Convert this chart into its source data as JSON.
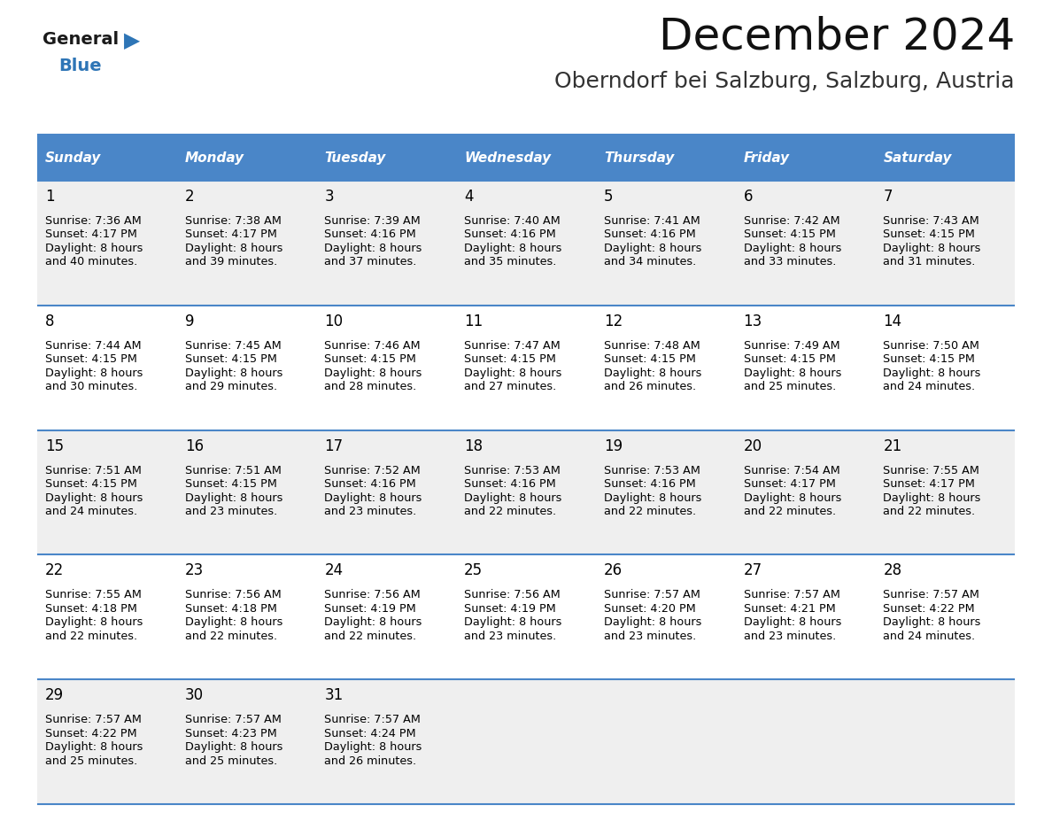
{
  "title": "December 2024",
  "subtitle": "Oberndorf bei Salzburg, Salzburg, Austria",
  "header_bg_color": "#4A86C8",
  "header_text_color": "#FFFFFF",
  "day_names": [
    "Sunday",
    "Monday",
    "Tuesday",
    "Wednesday",
    "Thursday",
    "Friday",
    "Saturday"
  ],
  "row_bg_colors": [
    "#EFEFEF",
    "#FFFFFF",
    "#EFEFEF",
    "#FFFFFF",
    "#EFEFEF"
  ],
  "cell_text_color": "#000000",
  "grid_color": "#4A86C8",
  "logo_general_color": "#1a1a1a",
  "logo_blue_color": "#2E75B6",
  "days": [
    {
      "day": 1,
      "col": 0,
      "row": 0,
      "sunrise": "7:36 AM",
      "sunset": "4:17 PM",
      "daylight_a": "8 hours",
      "daylight_b": "and 40 minutes."
    },
    {
      "day": 2,
      "col": 1,
      "row": 0,
      "sunrise": "7:38 AM",
      "sunset": "4:17 PM",
      "daylight_a": "8 hours",
      "daylight_b": "and 39 minutes."
    },
    {
      "day": 3,
      "col": 2,
      "row": 0,
      "sunrise": "7:39 AM",
      "sunset": "4:16 PM",
      "daylight_a": "8 hours",
      "daylight_b": "and 37 minutes."
    },
    {
      "day": 4,
      "col": 3,
      "row": 0,
      "sunrise": "7:40 AM",
      "sunset": "4:16 PM",
      "daylight_a": "8 hours",
      "daylight_b": "and 35 minutes."
    },
    {
      "day": 5,
      "col": 4,
      "row": 0,
      "sunrise": "7:41 AM",
      "sunset": "4:16 PM",
      "daylight_a": "8 hours",
      "daylight_b": "and 34 minutes."
    },
    {
      "day": 6,
      "col": 5,
      "row": 0,
      "sunrise": "7:42 AM",
      "sunset": "4:15 PM",
      "daylight_a": "8 hours",
      "daylight_b": "and 33 minutes."
    },
    {
      "day": 7,
      "col": 6,
      "row": 0,
      "sunrise": "7:43 AM",
      "sunset": "4:15 PM",
      "daylight_a": "8 hours",
      "daylight_b": "and 31 minutes."
    },
    {
      "day": 8,
      "col": 0,
      "row": 1,
      "sunrise": "7:44 AM",
      "sunset": "4:15 PM",
      "daylight_a": "8 hours",
      "daylight_b": "and 30 minutes."
    },
    {
      "day": 9,
      "col": 1,
      "row": 1,
      "sunrise": "7:45 AM",
      "sunset": "4:15 PM",
      "daylight_a": "8 hours",
      "daylight_b": "and 29 minutes."
    },
    {
      "day": 10,
      "col": 2,
      "row": 1,
      "sunrise": "7:46 AM",
      "sunset": "4:15 PM",
      "daylight_a": "8 hours",
      "daylight_b": "and 28 minutes."
    },
    {
      "day": 11,
      "col": 3,
      "row": 1,
      "sunrise": "7:47 AM",
      "sunset": "4:15 PM",
      "daylight_a": "8 hours",
      "daylight_b": "and 27 minutes."
    },
    {
      "day": 12,
      "col": 4,
      "row": 1,
      "sunrise": "7:48 AM",
      "sunset": "4:15 PM",
      "daylight_a": "8 hours",
      "daylight_b": "and 26 minutes."
    },
    {
      "day": 13,
      "col": 5,
      "row": 1,
      "sunrise": "7:49 AM",
      "sunset": "4:15 PM",
      "daylight_a": "8 hours",
      "daylight_b": "and 25 minutes."
    },
    {
      "day": 14,
      "col": 6,
      "row": 1,
      "sunrise": "7:50 AM",
      "sunset": "4:15 PM",
      "daylight_a": "8 hours",
      "daylight_b": "and 24 minutes."
    },
    {
      "day": 15,
      "col": 0,
      "row": 2,
      "sunrise": "7:51 AM",
      "sunset": "4:15 PM",
      "daylight_a": "8 hours",
      "daylight_b": "and 24 minutes."
    },
    {
      "day": 16,
      "col": 1,
      "row": 2,
      "sunrise": "7:51 AM",
      "sunset": "4:15 PM",
      "daylight_a": "8 hours",
      "daylight_b": "and 23 minutes."
    },
    {
      "day": 17,
      "col": 2,
      "row": 2,
      "sunrise": "7:52 AM",
      "sunset": "4:16 PM",
      "daylight_a": "8 hours",
      "daylight_b": "and 23 minutes."
    },
    {
      "day": 18,
      "col": 3,
      "row": 2,
      "sunrise": "7:53 AM",
      "sunset": "4:16 PM",
      "daylight_a": "8 hours",
      "daylight_b": "and 22 minutes."
    },
    {
      "day": 19,
      "col": 4,
      "row": 2,
      "sunrise": "7:53 AM",
      "sunset": "4:16 PM",
      "daylight_a": "8 hours",
      "daylight_b": "and 22 minutes."
    },
    {
      "day": 20,
      "col": 5,
      "row": 2,
      "sunrise": "7:54 AM",
      "sunset": "4:17 PM",
      "daylight_a": "8 hours",
      "daylight_b": "and 22 minutes."
    },
    {
      "day": 21,
      "col": 6,
      "row": 2,
      "sunrise": "7:55 AM",
      "sunset": "4:17 PM",
      "daylight_a": "8 hours",
      "daylight_b": "and 22 minutes."
    },
    {
      "day": 22,
      "col": 0,
      "row": 3,
      "sunrise": "7:55 AM",
      "sunset": "4:18 PM",
      "daylight_a": "8 hours",
      "daylight_b": "and 22 minutes."
    },
    {
      "day": 23,
      "col": 1,
      "row": 3,
      "sunrise": "7:56 AM",
      "sunset": "4:18 PM",
      "daylight_a": "8 hours",
      "daylight_b": "and 22 minutes."
    },
    {
      "day": 24,
      "col": 2,
      "row": 3,
      "sunrise": "7:56 AM",
      "sunset": "4:19 PM",
      "daylight_a": "8 hours",
      "daylight_b": "and 22 minutes."
    },
    {
      "day": 25,
      "col": 3,
      "row": 3,
      "sunrise": "7:56 AM",
      "sunset": "4:19 PM",
      "daylight_a": "8 hours",
      "daylight_b": "and 23 minutes."
    },
    {
      "day": 26,
      "col": 4,
      "row": 3,
      "sunrise": "7:57 AM",
      "sunset": "4:20 PM",
      "daylight_a": "8 hours",
      "daylight_b": "and 23 minutes."
    },
    {
      "day": 27,
      "col": 5,
      "row": 3,
      "sunrise": "7:57 AM",
      "sunset": "4:21 PM",
      "daylight_a": "8 hours",
      "daylight_b": "and 23 minutes."
    },
    {
      "day": 28,
      "col": 6,
      "row": 3,
      "sunrise": "7:57 AM",
      "sunset": "4:22 PM",
      "daylight_a": "8 hours",
      "daylight_b": "and 24 minutes."
    },
    {
      "day": 29,
      "col": 0,
      "row": 4,
      "sunrise": "7:57 AM",
      "sunset": "4:22 PM",
      "daylight_a": "8 hours",
      "daylight_b": "and 25 minutes."
    },
    {
      "day": 30,
      "col": 1,
      "row": 4,
      "sunrise": "7:57 AM",
      "sunset": "4:23 PM",
      "daylight_a": "8 hours",
      "daylight_b": "and 25 minutes."
    },
    {
      "day": 31,
      "col": 2,
      "row": 4,
      "sunrise": "7:57 AM",
      "sunset": "4:24 PM",
      "daylight_a": "8 hours",
      "daylight_b": "and 26 minutes."
    }
  ],
  "fig_width": 11.88,
  "fig_height": 9.18,
  "dpi": 100
}
